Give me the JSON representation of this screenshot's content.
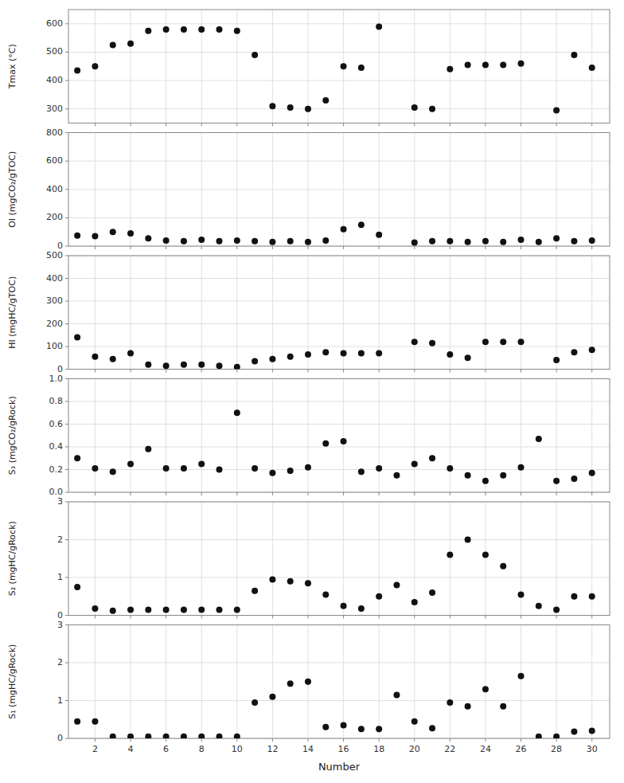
{
  "chart_data": [
    {
      "type": "scatter",
      "x": [
        1,
        2,
        3,
        4,
        5,
        6,
        7,
        8,
        9,
        10,
        11,
        12,
        13,
        14,
        15,
        16,
        17,
        18,
        19,
        20,
        21,
        22,
        23,
        24,
        25,
        26,
        27,
        28,
        29,
        30
      ],
      "values": [
        435,
        450,
        525,
        530,
        575,
        580,
        580,
        580,
        580,
        575,
        490,
        310,
        305,
        300,
        330,
        450,
        445,
        590,
        null,
        305,
        300,
        440,
        455,
        455,
        455,
        460,
        null,
        295,
        490,
        445
      ],
      "color": "#111111",
      "ylabel": "Tmax (°C)",
      "xlim": [
        0.5,
        31
      ],
      "ylim": [
        250,
        650
      ],
      "yticks": [
        300,
        400,
        500,
        600
      ],
      "xticks": [
        2,
        4,
        6,
        8,
        10,
        12,
        14,
        16,
        18,
        20,
        22,
        24,
        26,
        28,
        30
      ],
      "grid": true,
      "tick_labels": "y"
    },
    {
      "type": "scatter",
      "x": [
        1,
        2,
        3,
        4,
        5,
        6,
        7,
        8,
        9,
        10,
        11,
        12,
        13,
        14,
        15,
        16,
        17,
        18,
        19,
        20,
        21,
        22,
        23,
        24,
        25,
        26,
        27,
        28,
        29,
        30
      ],
      "values": [
        75,
        70,
        100,
        90,
        55,
        40,
        35,
        45,
        35,
        40,
        35,
        30,
        35,
        30,
        40,
        120,
        150,
        80,
        null,
        25,
        35,
        35,
        30,
        35,
        30,
        45,
        30,
        55,
        35,
        40
      ],
      "color": "#111111",
      "ylabel": "OI (mgCO₂/gTOC)",
      "xlim": [
        0.5,
        31
      ],
      "ylim": [
        0,
        800
      ],
      "yticks": [
        0,
        200,
        400,
        600,
        800
      ],
      "xticks": [
        2,
        4,
        6,
        8,
        10,
        12,
        14,
        16,
        18,
        20,
        22,
        24,
        26,
        28,
        30
      ],
      "grid": true,
      "tick_labels": "y"
    },
    {
      "type": "scatter",
      "x": [
        1,
        2,
        3,
        4,
        5,
        6,
        7,
        8,
        9,
        10,
        11,
        12,
        13,
        14,
        15,
        16,
        17,
        18,
        19,
        20,
        21,
        22,
        23,
        24,
        25,
        26,
        27,
        28,
        29,
        30
      ],
      "values": [
        140,
        55,
        45,
        70,
        20,
        15,
        20,
        20,
        15,
        10,
        35,
        45,
        55,
        65,
        75,
        70,
        70,
        70,
        null,
        120,
        115,
        65,
        50,
        120,
        120,
        120,
        null,
        40,
        75,
        85
      ],
      "color": "#111111",
      "ylabel": "HI (mgHC/gTOC)",
      "xlim": [
        0.5,
        31
      ],
      "ylim": [
        0,
        500
      ],
      "yticks": [
        0,
        100,
        200,
        300,
        400,
        500
      ],
      "xticks": [
        2,
        4,
        6,
        8,
        10,
        12,
        14,
        16,
        18,
        20,
        22,
        24,
        26,
        28,
        30
      ],
      "grid": true,
      "tick_labels": "y"
    },
    {
      "type": "scatter",
      "x": [
        1,
        2,
        3,
        4,
        5,
        6,
        7,
        8,
        9,
        10,
        11,
        12,
        13,
        14,
        15,
        16,
        17,
        18,
        19,
        20,
        21,
        22,
        23,
        24,
        25,
        26,
        27,
        28,
        29,
        30
      ],
      "values": [
        0.3,
        0.21,
        0.18,
        0.25,
        0.38,
        0.21,
        0.21,
        0.25,
        0.2,
        0.7,
        0.21,
        0.17,
        0.19,
        0.22,
        0.43,
        0.45,
        0.18,
        0.21,
        0.15,
        0.25,
        0.3,
        0.21,
        0.15,
        0.1,
        0.15,
        0.22,
        0.47,
        0.1,
        0.12,
        0.17
      ],
      "color": "#111111",
      "ylabel": "S₃ (mgCO₂/gRock)",
      "xlim": [
        0.5,
        31
      ],
      "ylim": [
        0,
        1
      ],
      "yticks": [
        {
          "value": 0,
          "label": "0.0"
        },
        0.2,
        0.4,
        0.6,
        0.8,
        {
          "value": 1,
          "label": "1.0"
        }
      ],
      "xticks": [
        2,
        4,
        6,
        8,
        10,
        12,
        14,
        16,
        18,
        20,
        22,
        24,
        26,
        28,
        30
      ],
      "grid": true,
      "tick_labels": "y"
    },
    {
      "type": "scatter",
      "x": [
        1,
        2,
        3,
        4,
        5,
        6,
        7,
        8,
        9,
        10,
        11,
        12,
        13,
        14,
        15,
        16,
        17,
        18,
        19,
        20,
        21,
        22,
        23,
        24,
        25,
        26,
        27,
        28,
        29,
        30
      ],
      "values": [
        0.75,
        0.18,
        0.12,
        0.15,
        0.15,
        0.15,
        0.15,
        0.15,
        0.15,
        0.15,
        0.65,
        0.95,
        0.9,
        0.85,
        0.55,
        0.25,
        0.18,
        0.5,
        0.8,
        0.35,
        0.6,
        1.6,
        2.0,
        1.6,
        1.3,
        0.55,
        0.25,
        0.15,
        0.5,
        0.5
      ],
      "color": "#111111",
      "ylabel": "S₂ (mgHC/gRock)",
      "xlim": [
        0.5,
        31
      ],
      "ylim": [
        0,
        3
      ],
      "yticks": [
        0,
        1,
        2,
        3
      ],
      "xticks": [
        2,
        4,
        6,
        8,
        10,
        12,
        14,
        16,
        18,
        20,
        22,
        24,
        26,
        28,
        30
      ],
      "grid": true,
      "tick_labels": "y"
    },
    {
      "type": "scatter",
      "x": [
        1,
        2,
        3,
        4,
        5,
        6,
        7,
        8,
        9,
        10,
        11,
        12,
        13,
        14,
        15,
        16,
        17,
        18,
        19,
        20,
        21,
        22,
        23,
        24,
        25,
        26,
        27,
        28,
        29,
        30
      ],
      "values": [
        0.45,
        0.45,
        0.05,
        0.05,
        0.05,
        0.05,
        0.05,
        0.05,
        0.05,
        0.05,
        0.95,
        1.1,
        1.45,
        1.5,
        0.3,
        0.35,
        0.25,
        0.25,
        1.15,
        0.45,
        0.27,
        0.95,
        0.85,
        1.3,
        0.85,
        1.65,
        0.05,
        0.05,
        0.18,
        0.2
      ],
      "color": "#111111",
      "ylabel": "S₁ (mgHC/gRock)",
      "xlabel": "Number",
      "xlim": [
        0.5,
        31
      ],
      "ylim": [
        0,
        3
      ],
      "yticks": [
        0,
        1,
        2,
        3
      ],
      "xticks": [
        2,
        4,
        6,
        8,
        10,
        12,
        14,
        16,
        18,
        20,
        22,
        24,
        26,
        28,
        30
      ],
      "grid": true
    }
  ]
}
